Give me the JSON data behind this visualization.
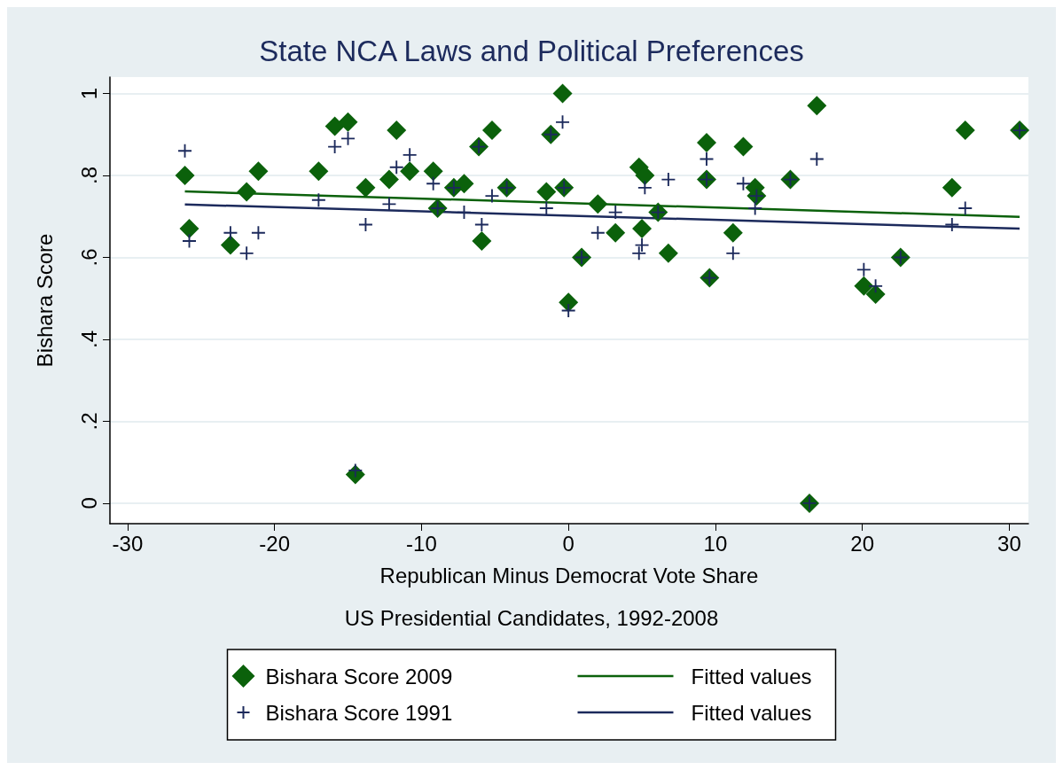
{
  "chart_data": {
    "type": "scatter",
    "title": "State NCA Laws and Political Preferences",
    "xlabel": "Republican Minus Democrat Vote Share",
    "ylabel": "Bishara Score",
    "annotations": [
      "US Presidential Candidates, 1992-2008"
    ],
    "xlim": [
      -31.2,
      31.3
    ],
    "ylim": [
      -0.05,
      1.04
    ],
    "xticks": [
      -30,
      -20,
      -10,
      0,
      10,
      20,
      30
    ],
    "yticks": [
      0,
      {
        "value": 0.2,
        "label": ".2"
      },
      {
        "value": 0.4,
        "label": ".4"
      },
      {
        "value": 0.6,
        "label": ".6"
      },
      {
        "value": 0.8,
        "label": ".8"
      },
      1
    ],
    "grid": "y",
    "legend": "bottom",
    "series": [
      {
        "name": "Bishara Score 2009",
        "marker": "diamond",
        "color": "#0b610b",
        "x": [
          -26.1,
          -25.8,
          -23.0,
          -21.9,
          -21.1,
          -17.0,
          -15.9,
          -15.0,
          -14.5,
          -13.8,
          -12.2,
          -11.7,
          -10.8,
          -9.2,
          -8.9,
          -7.8,
          -7.1,
          -6.1,
          -5.9,
          -5.2,
          -4.2,
          -1.5,
          -1.2,
          -0.4,
          -0.3,
          0.0,
          0.9,
          2.0,
          3.2,
          4.8,
          5.0,
          5.2,
          6.1,
          6.8,
          9.4,
          9.4,
          9.6,
          11.2,
          11.9,
          12.7,
          12.8,
          15.1,
          16.4,
          16.9,
          20.1,
          20.9,
          22.6,
          26.1,
          27.0,
          30.7
        ],
        "values": [
          0.8,
          0.67,
          0.63,
          0.76,
          0.81,
          0.81,
          0.92,
          0.93,
          0.07,
          0.77,
          0.79,
          0.91,
          0.81,
          0.81,
          0.72,
          0.77,
          0.78,
          0.87,
          0.64,
          0.91,
          0.77,
          0.76,
          0.9,
          1.0,
          0.77,
          0.49,
          0.6,
          0.73,
          0.66,
          0.82,
          0.67,
          0.8,
          0.71,
          0.61,
          0.88,
          0.79,
          0.55,
          0.66,
          0.87,
          0.77,
          0.75,
          0.79,
          0.0,
          0.97,
          0.53,
          0.51,
          0.6,
          0.77,
          0.91,
          0.91
        ]
      },
      {
        "name": "Fitted values",
        "type": "line",
        "marker": "none",
        "color": "#0b610b",
        "x": [
          -26.1,
          30.7
        ],
        "values": [
          0.761,
          0.699
        ]
      },
      {
        "name": "Bishara Score 1991",
        "marker": "cross",
        "color": "#1c2a5c",
        "x": [
          -26.1,
          -25.8,
          -23.0,
          -21.9,
          -21.1,
          -17.0,
          -15.9,
          -15.0,
          -14.5,
          -13.8,
          -12.2,
          -11.7,
          -10.8,
          -9.2,
          -8.9,
          -7.8,
          -7.1,
          -6.1,
          -5.9,
          -5.2,
          -4.2,
          -1.5,
          -1.2,
          -0.4,
          -0.3,
          0.0,
          0.9,
          2.0,
          3.2,
          4.8,
          5.0,
          5.2,
          6.1,
          6.8,
          9.4,
          9.4,
          9.6,
          11.2,
          11.9,
          12.7,
          12.8,
          15.1,
          16.4,
          16.9,
          20.1,
          20.9,
          22.6,
          26.1,
          27.0,
          30.7
        ],
        "values": [
          0.86,
          0.64,
          0.66,
          0.61,
          0.66,
          0.74,
          0.87,
          0.89,
          0.08,
          0.68,
          0.73,
          0.82,
          0.85,
          0.78,
          0.72,
          0.77,
          0.71,
          0.87,
          0.68,
          0.75,
          0.77,
          0.72,
          0.9,
          0.93,
          0.77,
          0.47,
          0.6,
          0.66,
          0.71,
          0.61,
          0.63,
          0.77,
          0.71,
          0.79,
          0.84,
          0.79,
          0.55,
          0.61,
          0.78,
          0.72,
          0.75,
          0.79,
          0.0,
          0.84,
          0.57,
          0.53,
          0.6,
          0.68,
          0.72,
          0.91
        ]
      },
      {
        "name": "Fitted values",
        "type": "line",
        "marker": "none",
        "color": "#1c2a5c",
        "x": [
          -26.1,
          30.7
        ],
        "values": [
          0.729,
          0.67
        ]
      }
    ]
  }
}
